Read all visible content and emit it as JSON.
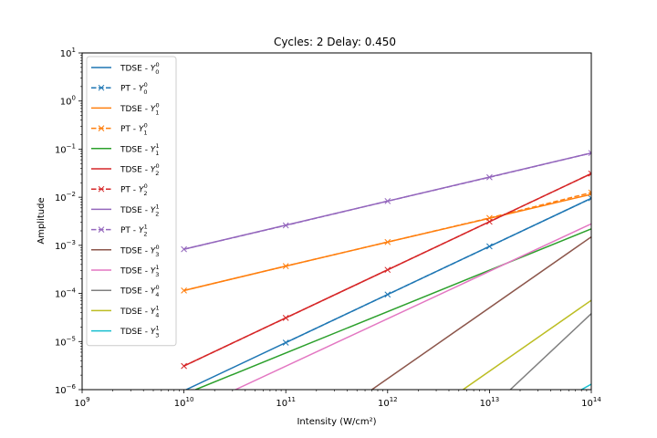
{
  "chart_data": {
    "type": "line",
    "title": "Cycles:  2     Delay: 0.450",
    "xlabel": "Intensity (W/cm²)",
    "ylabel": "Amplitude",
    "xscale": "log",
    "yscale": "log",
    "xlim": [
      1000000000.0,
      100000000000000.0
    ],
    "ylim": [
      1e-06,
      10
    ],
    "x_ticks": [
      {
        "value": 1000000000.0,
        "base": "10",
        "exp": "9"
      },
      {
        "value": 10000000000.0,
        "base": "10",
        "exp": "10"
      },
      {
        "value": 100000000000.0,
        "base": "10",
        "exp": "11"
      },
      {
        "value": 1000000000000.0,
        "base": "10",
        "exp": "12"
      },
      {
        "value": 10000000000000.0,
        "base": "10",
        "exp": "13"
      },
      {
        "value": 100000000000000.0,
        "base": "10",
        "exp": "14"
      }
    ],
    "y_ticks": [
      {
        "value": 1e-06,
        "base": "10",
        "exp": "−6"
      },
      {
        "value": 1e-05,
        "base": "10",
        "exp": "−5"
      },
      {
        "value": 0.0001,
        "base": "10",
        "exp": "−4"
      },
      {
        "value": 0.001,
        "base": "10",
        "exp": "−3"
      },
      {
        "value": 0.01,
        "base": "10",
        "exp": "−2"
      },
      {
        "value": 0.1,
        "base": "10",
        "exp": "−1"
      },
      {
        "value": 1.0,
        "base": "10",
        "exp": "0"
      },
      {
        "value": 10.0,
        "base": "10",
        "exp": "1"
      }
    ],
    "grid": false,
    "legend_position": "upper-left",
    "series": [
      {
        "name_prefix": "TDSE - ",
        "sym": "Y",
        "sup": "0",
        "sub": "0",
        "style": "solid",
        "marker": "none",
        "color": "#1f77b4",
        "x": [
          10000000000.0,
          100000000000000.0
        ],
        "y": [
          9.5e-07,
          0.0095
        ]
      },
      {
        "name_prefix": "PT - ",
        "sym": "Y",
        "sup": "0",
        "sub": "0",
        "style": "dashed",
        "marker": "x",
        "color": "#1f77b4",
        "x": [
          100000000000.0,
          1000000000000.0,
          10000000000000.0,
          100000000000000.0
        ],
        "y": [
          9.5e-06,
          9.5e-05,
          0.00095,
          0.0095
        ]
      },
      {
        "name_prefix": "TDSE - ",
        "sym": "Y",
        "sup": "0",
        "sub": "1",
        "style": "solid",
        "marker": "none",
        "color": "#ff7f0e",
        "x": [
          10000000000.0,
          100000000000.0,
          1000000000000.0,
          10000000000000.0,
          100000000000000.0
        ],
        "y": [
          0.000115,
          0.00037,
          0.00117,
          0.00365,
          0.0115
        ]
      },
      {
        "name_prefix": "PT - ",
        "sym": "Y",
        "sup": "0",
        "sub": "1",
        "style": "dashed",
        "marker": "x",
        "color": "#ff7f0e",
        "x": [
          10000000000.0,
          100000000000.0,
          1000000000000.0,
          10000000000000.0,
          100000000000000.0
        ],
        "y": [
          0.000115,
          0.00037,
          0.00117,
          0.0037,
          0.0125
        ]
      },
      {
        "name_prefix": "TDSE - ",
        "sym": "Y",
        "sup": "1",
        "sub": "1",
        "style": "solid",
        "marker": "none",
        "color": "#2ca02c",
        "x": [
          13000000000.0,
          100000000000000.0
        ],
        "y": [
          1e-06,
          0.0022
        ]
      },
      {
        "name_prefix": "TDSE - ",
        "sym": "Y",
        "sup": "0",
        "sub": "2",
        "style": "solid",
        "marker": "none",
        "color": "#d62728",
        "x": [
          10000000000.0,
          100000000000000.0
        ],
        "y": [
          3.1e-06,
          0.031
        ]
      },
      {
        "name_prefix": "PT - ",
        "sym": "Y",
        "sup": "0",
        "sub": "2",
        "style": "dashed",
        "marker": "x",
        "color": "#d62728",
        "x": [
          10000000000.0,
          100000000000.0,
          1000000000000.0,
          10000000000000.0,
          100000000000000.0
        ],
        "y": [
          3.1e-06,
          3.1e-05,
          0.00031,
          0.0031,
          0.031
        ]
      },
      {
        "name_prefix": "TDSE - ",
        "sym": "Y",
        "sup": "1",
        "sub": "2",
        "style": "solid",
        "marker": "none",
        "color": "#9467bd",
        "x": [
          10000000000.0,
          100000000000000.0
        ],
        "y": [
          0.00083,
          0.083
        ]
      },
      {
        "name_prefix": "PT - ",
        "sym": "Y",
        "sup": "1",
        "sub": "2",
        "style": "dashed",
        "marker": "x",
        "color": "#9467bd",
        "x": [
          10000000000.0,
          100000000000.0,
          1000000000000.0,
          10000000000000.0,
          100000000000000.0
        ],
        "y": [
          0.00083,
          0.0026,
          0.0083,
          0.026,
          0.083
        ]
      },
      {
        "name_prefix": "TDSE - ",
        "sym": "Y",
        "sup": "0",
        "sub": "3",
        "style": "solid",
        "marker": "none",
        "color": "#8c564b",
        "x": [
          700000000000.0,
          100000000000000.0
        ],
        "y": [
          1e-06,
          0.0015
        ]
      },
      {
        "name_prefix": "TDSE - ",
        "sym": "Y",
        "sup": "1",
        "sub": "3",
        "style": "solid",
        "marker": "none",
        "color": "#e377c2",
        "x": [
          32000000000.0,
          100000000000000.0
        ],
        "y": [
          1e-06,
          0.0028
        ]
      },
      {
        "name_prefix": "TDSE - ",
        "sym": "Y",
        "sup": "0",
        "sub": "4",
        "style": "solid",
        "marker": "none",
        "color": "#7f7f7f",
        "x": [
          16000000000000.0,
          100000000000000.0
        ],
        "y": [
          1e-06,
          3.8e-05
        ]
      },
      {
        "name_prefix": "TDSE - ",
        "sym": "Y",
        "sup": "1",
        "sub": "4",
        "style": "solid",
        "marker": "none",
        "color": "#bcbd22",
        "x": [
          5500000000000.0,
          100000000000000.0
        ],
        "y": [
          1e-06,
          7.2e-05
        ]
      },
      {
        "name_prefix": "TDSE - ",
        "sym": "Y",
        "sup": "1",
        "sub": "3",
        "style": "solid",
        "marker": "none",
        "color": "#17becf",
        "x": [
          80000000000000.0,
          100000000000000.0
        ],
        "y": [
          1e-06,
          1.3e-06
        ]
      }
    ]
  }
}
